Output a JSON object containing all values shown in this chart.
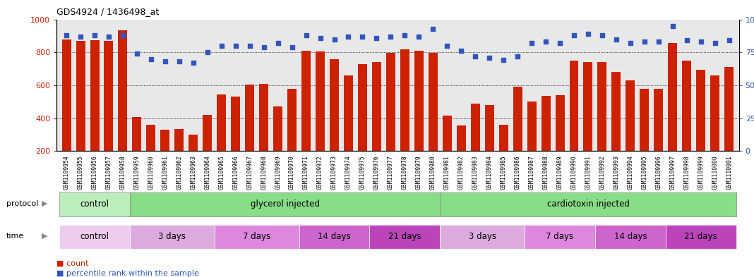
{
  "title": "GDS4924 / 1436498_at",
  "samples": [
    "GSM1109954",
    "GSM1109955",
    "GSM1109956",
    "GSM1109957",
    "GSM1109958",
    "GSM1109959",
    "GSM1109960",
    "GSM1109961",
    "GSM1109962",
    "GSM1109963",
    "GSM1109964",
    "GSM1109965",
    "GSM1109966",
    "GSM1109967",
    "GSM1109968",
    "GSM1109969",
    "GSM1109970",
    "GSM1109971",
    "GSM1109972",
    "GSM1109973",
    "GSM1109974",
    "GSM1109975",
    "GSM1109976",
    "GSM1109977",
    "GSM1109978",
    "GSM1109979",
    "GSM1109980",
    "GSM1109981",
    "GSM1109982",
    "GSM1109983",
    "GSM1109984",
    "GSM1109985",
    "GSM1109986",
    "GSM1109987",
    "GSM1109988",
    "GSM1109989",
    "GSM1109990",
    "GSM1109991",
    "GSM1109992",
    "GSM1109993",
    "GSM1109994",
    "GSM1109995",
    "GSM1109996",
    "GSM1109997",
    "GSM1109998",
    "GSM1109999",
    "GSM1110000",
    "GSM1110001"
  ],
  "bar_values": [
    880,
    870,
    875,
    870,
    935,
    405,
    360,
    330,
    335,
    300,
    420,
    545,
    530,
    605,
    610,
    470,
    580,
    810,
    805,
    760,
    660,
    730,
    740,
    795,
    820,
    810,
    795,
    415,
    355,
    490,
    480,
    360,
    590,
    500,
    535,
    540,
    750,
    740,
    740,
    680,
    630,
    580,
    580,
    855,
    750,
    695,
    660,
    710
  ],
  "dot_values": [
    88,
    87,
    88,
    87,
    88,
    74,
    70,
    68,
    68,
    67,
    75,
    80,
    80,
    80,
    79,
    82,
    79,
    88,
    86,
    85,
    87,
    87,
    86,
    87,
    88,
    87,
    93,
    80,
    76,
    72,
    71,
    69,
    72,
    82,
    83,
    82,
    88,
    89,
    88,
    85,
    82,
    83,
    83,
    95,
    84,
    83,
    82,
    84
  ],
  "bar_color": "#cc2200",
  "dot_color": "#3355bb",
  "bg_color": "#e8e8e8",
  "ytick_left_color": "#cc2200",
  "ytick_right_color": "#3355bb",
  "ylim_left": [
    200,
    1000
  ],
  "ylim_right": [
    0,
    100
  ],
  "yticks_left": [
    200,
    400,
    600,
    800,
    1000
  ],
  "yticks_right": [
    0,
    25,
    50,
    75,
    100
  ],
  "protocol_groups": [
    {
      "label": "control",
      "start": 0,
      "end": 5,
      "color": "#bbeebb"
    },
    {
      "label": "glycerol injected",
      "start": 5,
      "end": 27,
      "color": "#88dd88"
    },
    {
      "label": "cardiotoxin injected",
      "start": 27,
      "end": 48,
      "color": "#88dd88"
    }
  ],
  "time_groups": [
    {
      "label": "control",
      "start": 0,
      "end": 5,
      "color": "#eeccee"
    },
    {
      "label": "3 days",
      "start": 5,
      "end": 11,
      "color": "#ddaadd"
    },
    {
      "label": "7 days",
      "start": 11,
      "end": 17,
      "color": "#dd88dd"
    },
    {
      "label": "14 days",
      "start": 17,
      "end": 22,
      "color": "#cc66cc"
    },
    {
      "label": "21 days",
      "start": 22,
      "end": 27,
      "color": "#bb44bb"
    },
    {
      "label": "3 days",
      "start": 27,
      "end": 33,
      "color": "#ddaadd"
    },
    {
      "label": "7 days",
      "start": 33,
      "end": 38,
      "color": "#dd88dd"
    },
    {
      "label": "14 days",
      "start": 38,
      "end": 43,
      "color": "#cc66cc"
    },
    {
      "label": "21 days",
      "start": 43,
      "end": 48,
      "color": "#bb44bb"
    }
  ],
  "legend_count_label": "count",
  "legend_pct_label": "percentile rank within the sample",
  "protocol_label": "protocol",
  "time_label": "time"
}
